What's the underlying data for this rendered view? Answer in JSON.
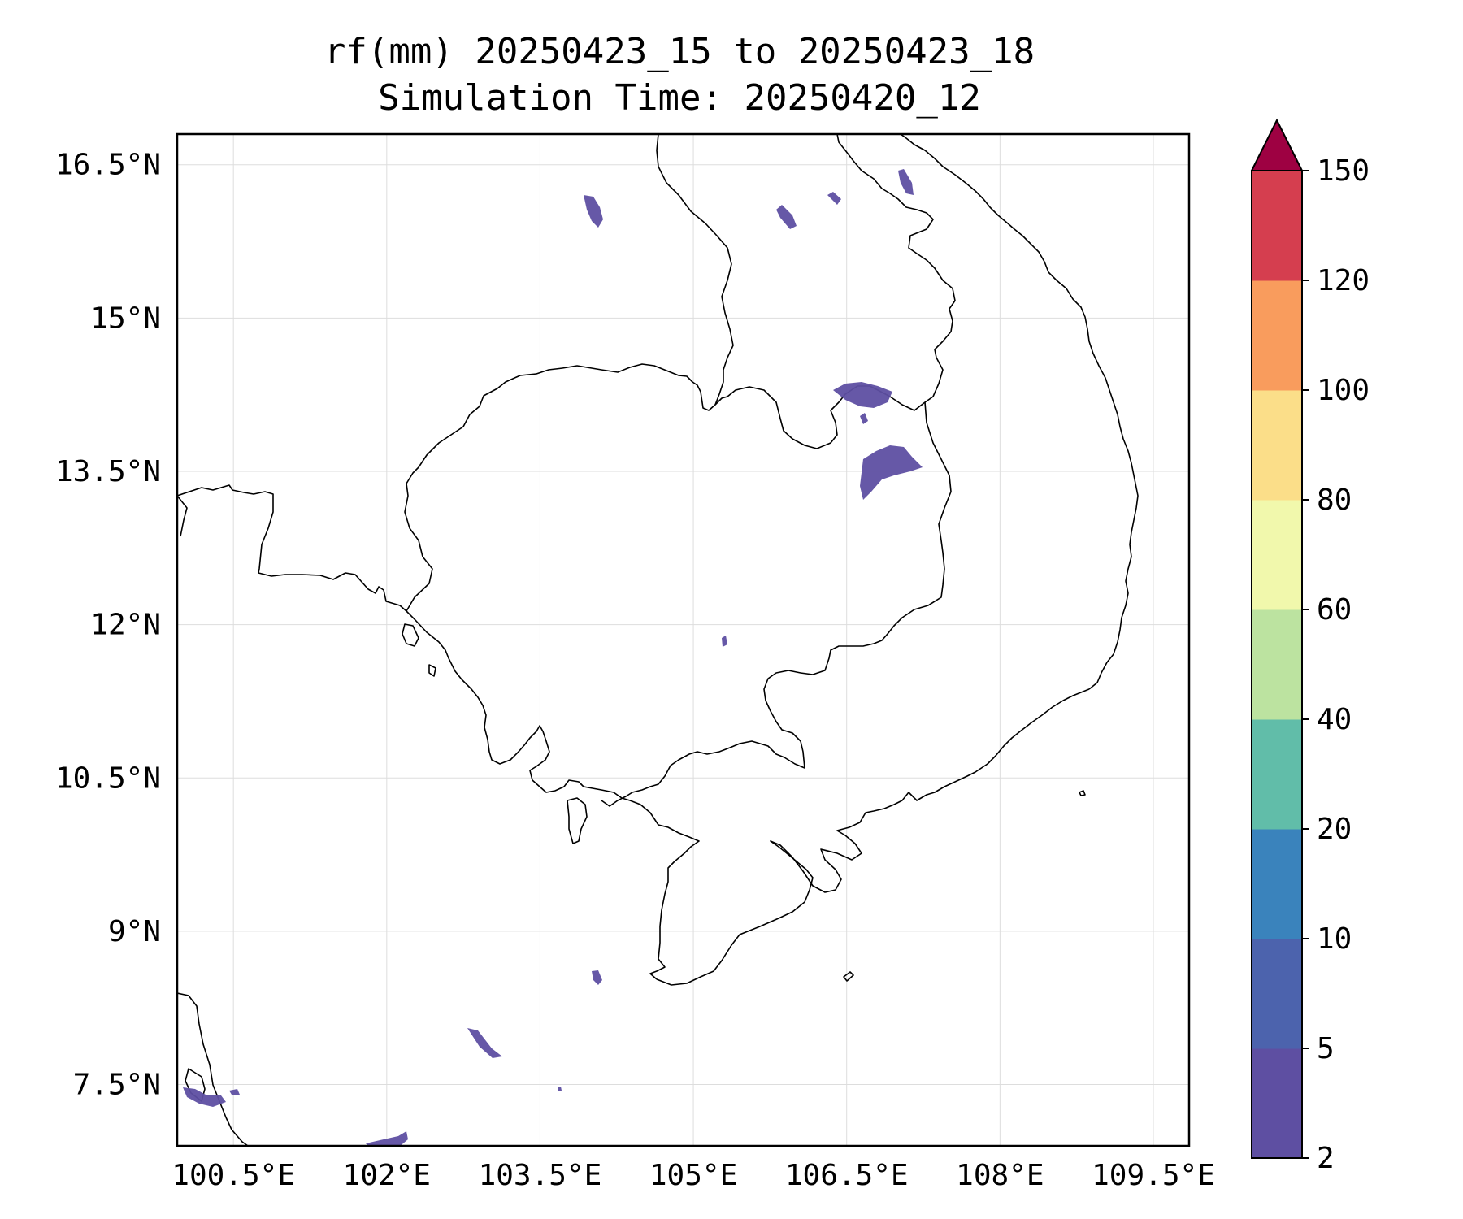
{
  "title": {
    "line1": "rf(mm) 20250423_15 to 20250423_18",
    "line2": "Simulation Time: 20250420_12"
  },
  "map": {
    "lon_range": [
      99.95,
      109.85
    ],
    "lat_range": [
      6.9,
      16.8
    ],
    "lon_ticks": [
      {
        "value": 100.5,
        "label": "100.5°E"
      },
      {
        "value": 102.0,
        "label": "102°E"
      },
      {
        "value": 103.5,
        "label": "103.5°E"
      },
      {
        "value": 105.0,
        "label": "105°E"
      },
      {
        "value": 106.5,
        "label": "106.5°E"
      },
      {
        "value": 108.0,
        "label": "108°E"
      },
      {
        "value": 109.5,
        "label": "109.5°E"
      }
    ],
    "lat_ticks": [
      {
        "value": 16.5,
        "label": "16.5°N"
      },
      {
        "value": 15.0,
        "label": "15°N"
      },
      {
        "value": 13.5,
        "label": "13.5°N"
      },
      {
        "value": 12.0,
        "label": "12°N"
      },
      {
        "value": 10.5,
        "label": "10.5°N"
      },
      {
        "value": 9.0,
        "label": "9°N"
      },
      {
        "value": 7.5,
        "label": "7.5°N"
      }
    ],
    "gridlines": true
  },
  "colorbar": {
    "levels": [
      {
        "value": 2,
        "label": "2"
      },
      {
        "value": 5,
        "label": "5"
      },
      {
        "value": 10,
        "label": "10"
      },
      {
        "value": 20,
        "label": "20"
      },
      {
        "value": 40,
        "label": "40"
      },
      {
        "value": 60,
        "label": "60"
      },
      {
        "value": 80,
        "label": "80"
      },
      {
        "value": 100,
        "label": "100"
      },
      {
        "value": 120,
        "label": "120"
      },
      {
        "value": 150,
        "label": "150"
      }
    ],
    "colors": [
      "#5e4fa2",
      "#4c63ad",
      "#3a83bc",
      "#61bda9",
      "#bce3a0",
      "#f1f8ac",
      "#fbde89",
      "#f99c5d",
      "#d53e4f"
    ],
    "extend_color": "#9e0142",
    "extend": "max"
  }
}
